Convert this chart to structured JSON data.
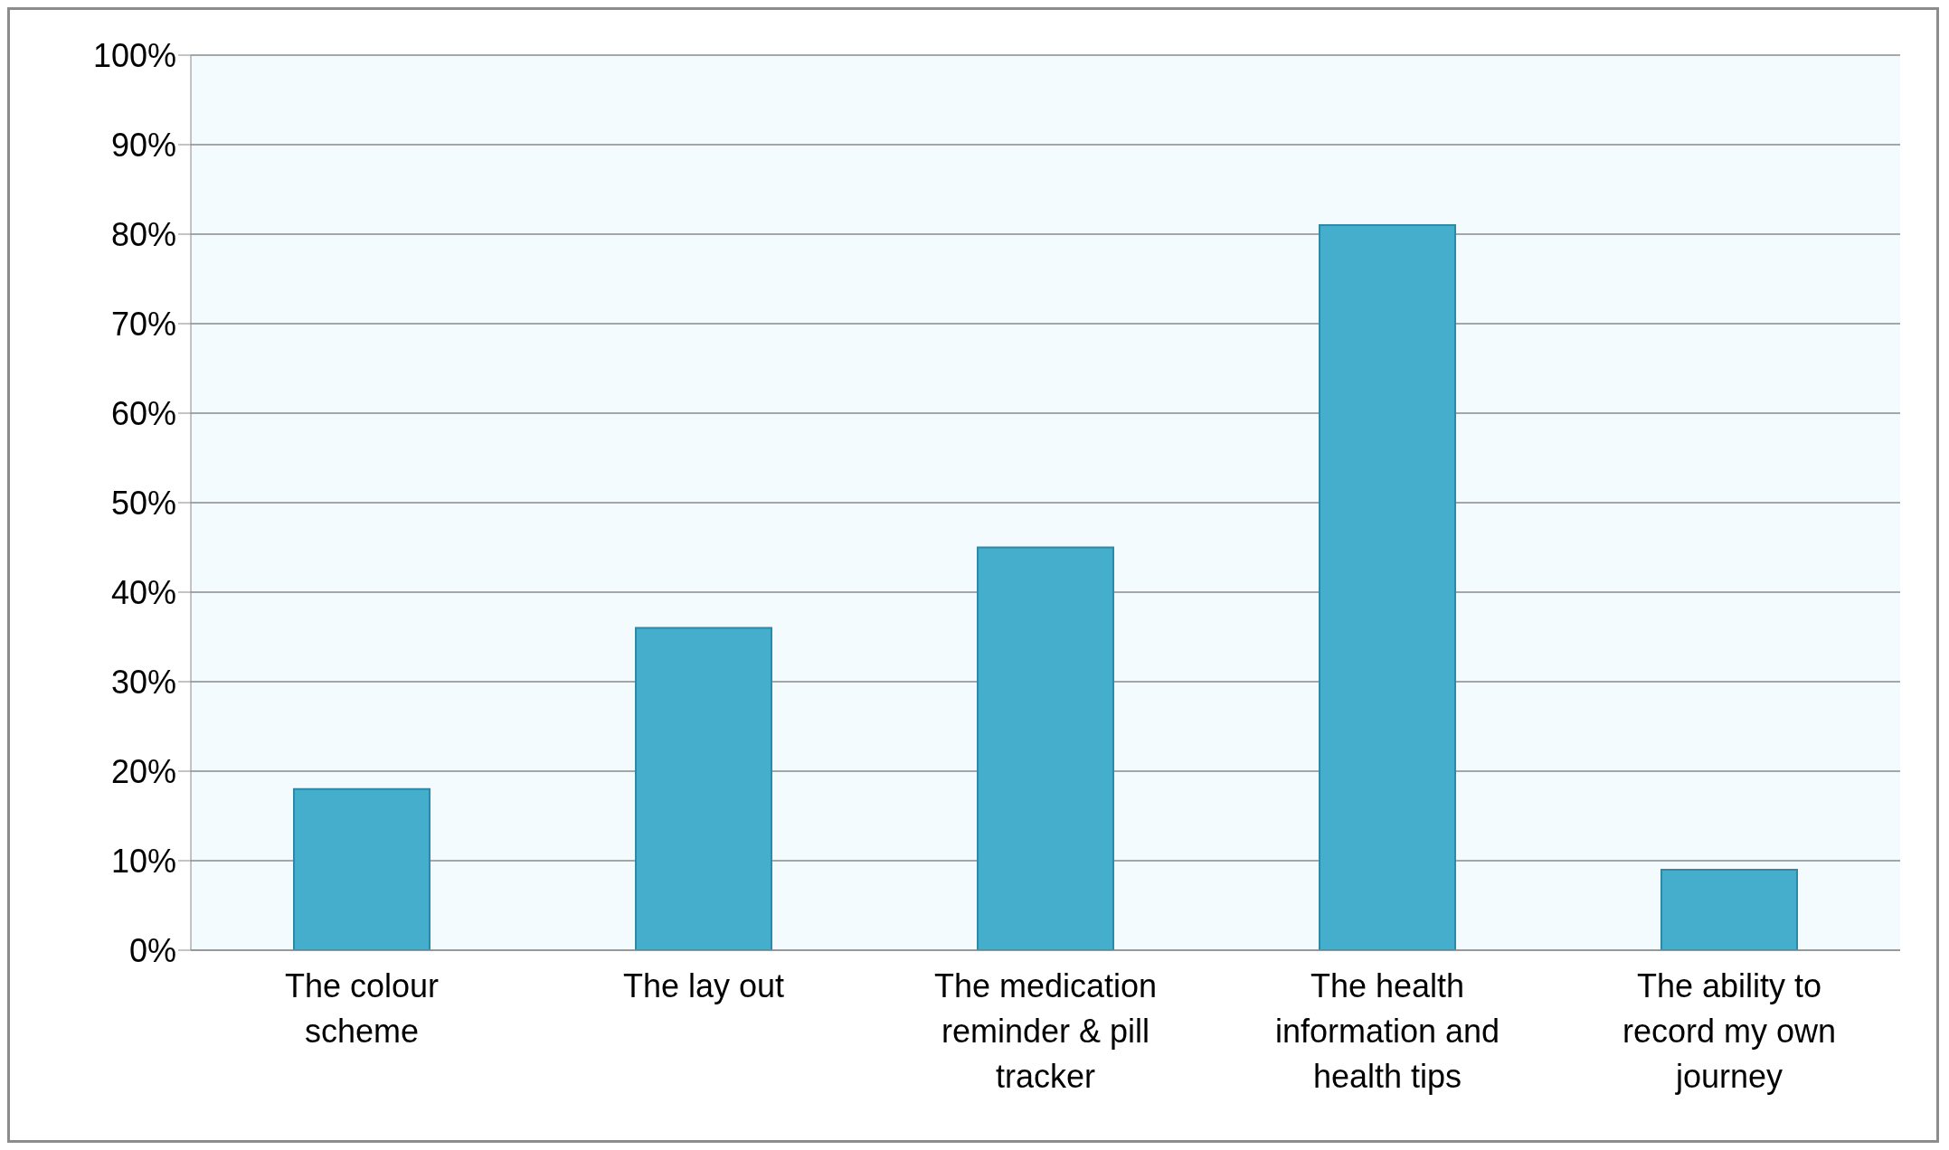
{
  "chart_data": {
    "type": "bar",
    "categories": [
      "The colour scheme",
      "The lay out",
      "The medication reminder & pill tracker",
      "The health information and health tips",
      "The ability to record my own journey"
    ],
    "values": [
      18,
      36,
      45,
      81,
      9
    ],
    "color": "#45aecd",
    "ylim": [
      0,
      100
    ],
    "yticks": [
      {
        "value": 0,
        "label": "0%"
      },
      {
        "value": 10,
        "label": "10%"
      },
      {
        "value": 20,
        "label": "20%"
      },
      {
        "value": 30,
        "label": "30%"
      },
      {
        "value": 40,
        "label": "40%"
      },
      {
        "value": 50,
        "label": "50%"
      },
      {
        "value": 60,
        "label": "60%"
      },
      {
        "value": 70,
        "label": "70%"
      },
      {
        "value": 80,
        "label": "80%"
      },
      {
        "value": 90,
        "label": "90%"
      },
      {
        "value": 100,
        "label": "100%"
      }
    ],
    "grid": "y"
  }
}
